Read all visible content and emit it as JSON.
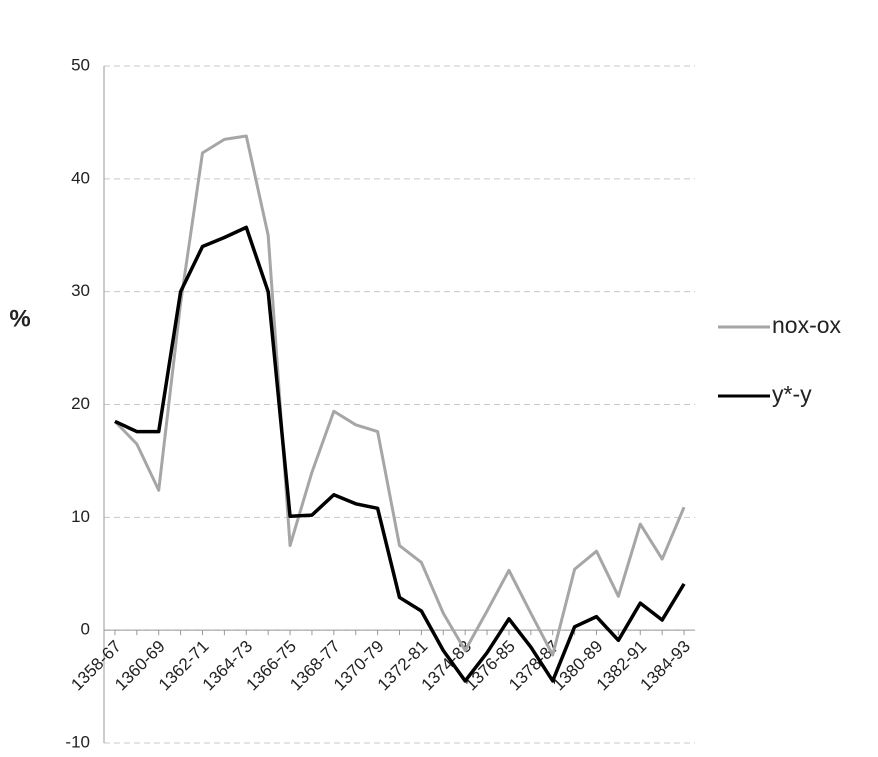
{
  "chart_data": {
    "type": "line",
    "categories": [
      "1358-67",
      null,
      "1360-69",
      null,
      "1362-71",
      null,
      "1364-73",
      null,
      "1366-75",
      null,
      "1368-77",
      null,
      "1370-79",
      null,
      "1372-81",
      null,
      "1374-83",
      null,
      "1376-85",
      null,
      "1378-87",
      null,
      "1380-89",
      null,
      "1382-91",
      null,
      "1384-93"
    ],
    "y_label": "%",
    "series": [
      {
        "name": "nox-ox",
        "color": "#a6a6a6",
        "values": [
          18.5,
          16.5,
          12.4,
          29,
          42.3,
          43.5,
          43.8,
          35,
          7.5,
          14,
          19.4,
          18.2,
          17.6,
          7.5,
          6,
          1.5,
          -1.8,
          1.7,
          5.3,
          1.5,
          -2.2,
          5.4,
          7,
          3,
          9.4,
          6.3,
          10.9
        ]
      },
      {
        "name": "y*-y",
        "color": "#000000",
        "values": [
          18.5,
          17.6,
          17.6,
          30,
          34,
          34.8,
          35.7,
          30,
          10.1,
          10.2,
          12,
          11.2,
          10.8,
          2.9,
          1.7,
          -1.8,
          -4.5,
          -2,
          1,
          -1.5,
          -4.5,
          0.3,
          1.2,
          -0.9,
          2.4,
          0.9,
          4.1
        ]
      }
    ],
    "ylim": [
      -10,
      50
    ],
    "yticks": [
      -10,
      0,
      10,
      20,
      30,
      40,
      50
    ],
    "grid": true,
    "legend": "right"
  }
}
